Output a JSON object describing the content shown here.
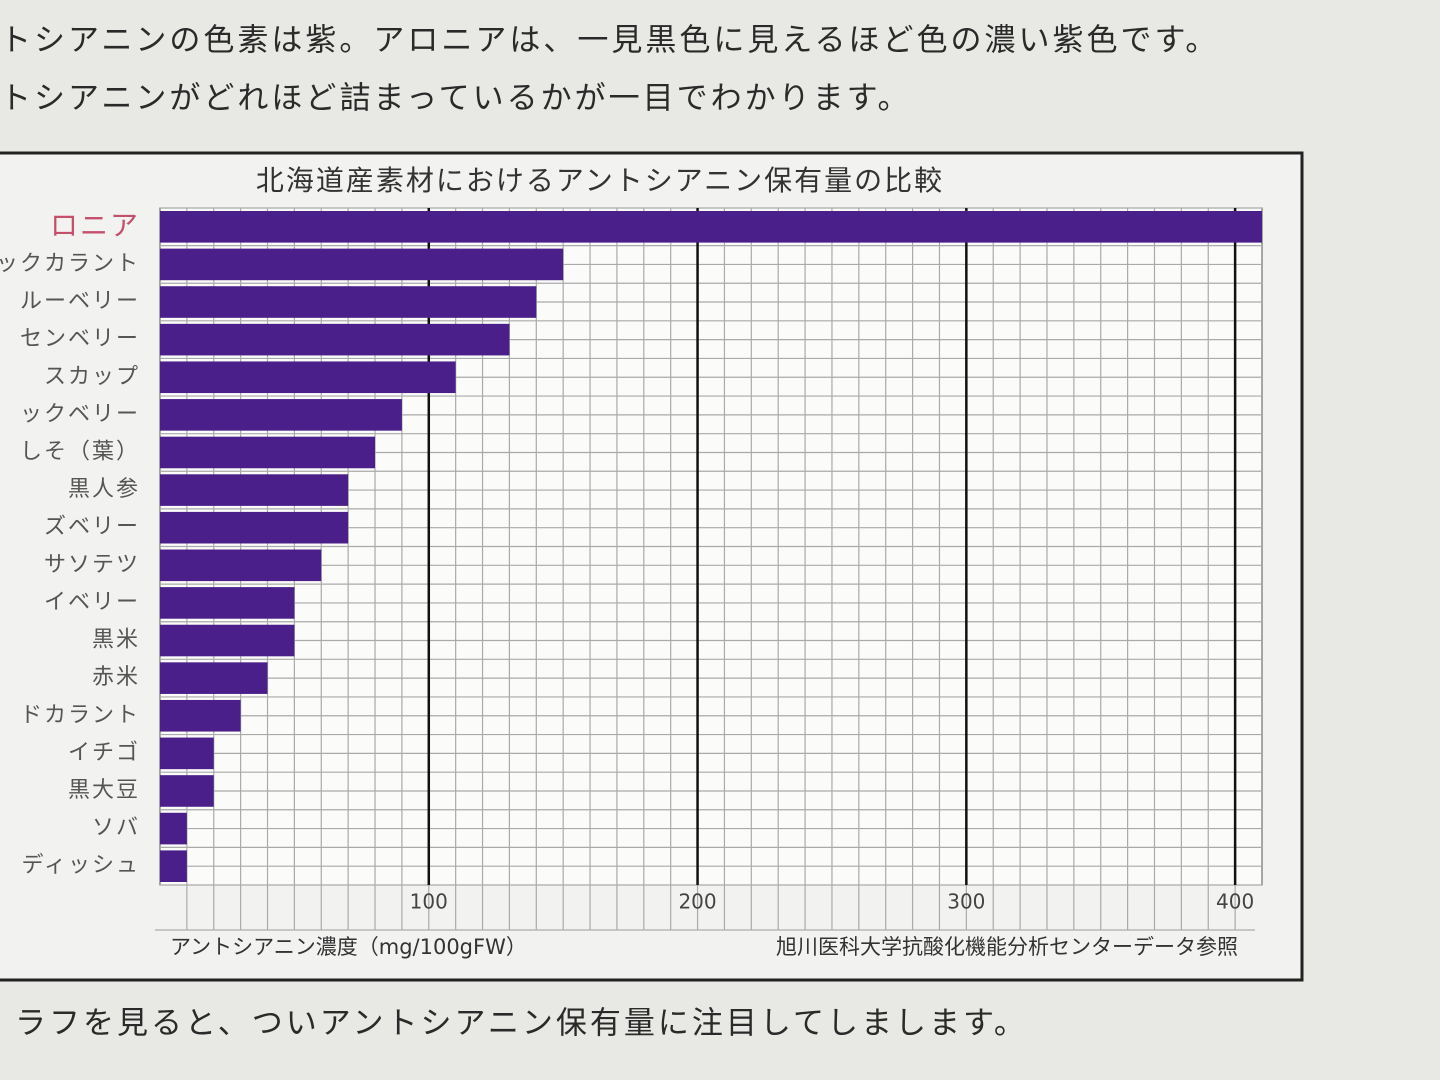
{
  "text": {
    "lines_top": [
      "トシアニンの色素は紫。アロニアは、一見黒色に見えるほど色の濃い紫色です。",
      "トシアニンがどれほど詰まっているかが一目でわかります。"
    ],
    "lines_bottom": [
      "ラフを見ると、ついアントシアニン保有量に注目してしまします。"
    ]
  },
  "chart_data": {
    "type": "hbar",
    "title": "北海道産素材におけるアントシアニン保有量の比較",
    "categories": [
      "ロニア",
      "ックカラント",
      "ルーベリー",
      "センベリー",
      "スカップ",
      "ックベリー",
      "しそ（葉）",
      "黒人参",
      "ズベリー",
      "サソテツ",
      "イベリー",
      "黒米",
      "赤米",
      "ドカラント",
      "イチゴ",
      "黒大豆",
      "ソバ",
      "ディッシュ"
    ],
    "values": [
      410,
      150,
      140,
      130,
      110,
      90,
      80,
      70,
      70,
      60,
      50,
      50,
      40,
      30,
      20,
      20,
      10,
      10
    ],
    "color": "#4a1f8a",
    "xlim": [
      0,
      410
    ],
    "xticks": [
      100,
      200,
      300,
      400
    ],
    "minor_grid": 10,
    "grid": true,
    "x_label": "アントシアニン濃度（mg/100gFW）",
    "source": "旭川医科大学抗酸化機能分析センターデータ参照"
  }
}
